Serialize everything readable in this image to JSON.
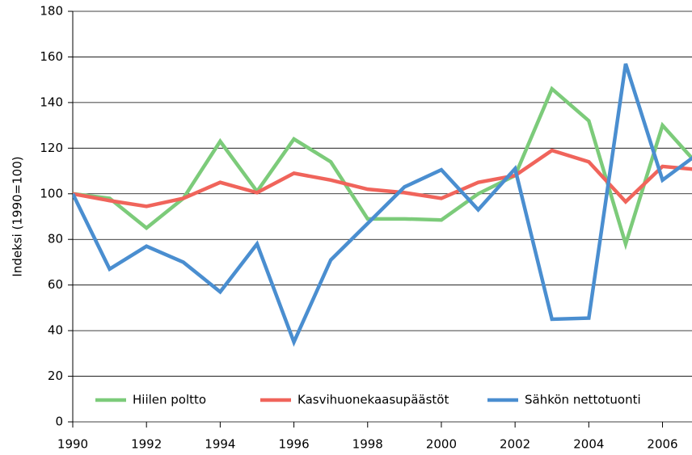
{
  "chart_data": {
    "type": "line",
    "y_label": "Indeksi (1990=100)",
    "x": [
      1990,
      1991,
      1992,
      1993,
      1994,
      1995,
      1996,
      1997,
      1998,
      1999,
      2000,
      2001,
      2002,
      2003,
      2004,
      2005,
      2006,
      2007
    ],
    "series": [
      {
        "name": "Hiilen poltto",
        "color": "#7ccb7a",
        "values": [
          100,
          98,
          85,
          98,
          123,
          101,
          124,
          114,
          89,
          89,
          88.5,
          100,
          108,
          146,
          132,
          78,
          130,
          112
        ]
      },
      {
        "name": "Kasvihuonekaasupäästöt",
        "color": "#f0645b",
        "values": [
          100,
          97,
          94.5,
          98,
          105,
          100.5,
          109,
          106,
          102,
          100.5,
          98,
          105,
          108,
          119,
          114,
          96.5,
          112,
          110.5
        ]
      },
      {
        "name": "Sähkön nettotuonti",
        "color": "#4a8ed0",
        "values": [
          100,
          67,
          77,
          70,
          57,
          78,
          35,
          71,
          87,
          103,
          110.5,
          93,
          111,
          45,
          45.5,
          157,
          106,
          118
        ]
      }
    ],
    "xlim": [
      1990,
      2006.8
    ],
    "xticks": [
      1990,
      1992,
      1994,
      1996,
      1998,
      2000,
      2002,
      2004,
      2006
    ],
    "ylim": [
      0,
      180
    ],
    "yticks": [
      0,
      20,
      40,
      60,
      80,
      100,
      120,
      140,
      160,
      180
    ],
    "grid": true,
    "legend": "bottom"
  }
}
